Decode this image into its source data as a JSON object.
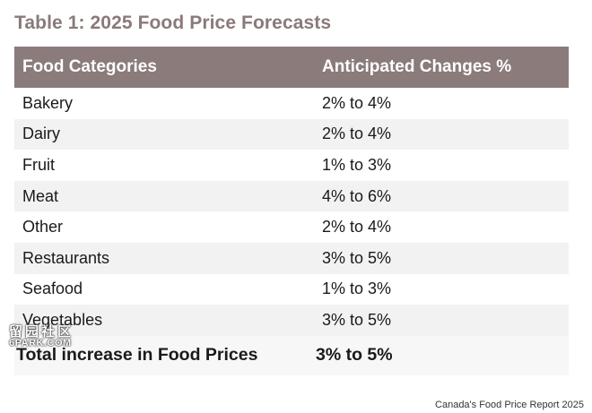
{
  "title": "Table 1: 2025 Food Price Forecasts",
  "table": {
    "headers": [
      "Food Categories",
      "Anticipated Changes %"
    ],
    "rows": [
      [
        "Bakery",
        "2% to 4%"
      ],
      [
        "Dairy",
        "2% to 4%"
      ],
      [
        "Fruit",
        "1% to 3%"
      ],
      [
        "Meat",
        "4% to 6%"
      ],
      [
        "Other",
        "2% to 4%"
      ],
      [
        "Restaurants",
        "3% to 5%"
      ],
      [
        "Seafood",
        "1% to 3%"
      ],
      [
        "Vegetables",
        "3% to 5%"
      ]
    ],
    "total": [
      "Total increase in Food Prices",
      "3% to 5%"
    ]
  },
  "source": "Canada's Food Price Report 2025",
  "watermark": {
    "logo": "留园社区",
    "site": "6PARK.COM"
  },
  "colors": {
    "header_bg": "#8b7b7b",
    "title": "#8a7a7a",
    "stripe": "#f2f2f2"
  }
}
